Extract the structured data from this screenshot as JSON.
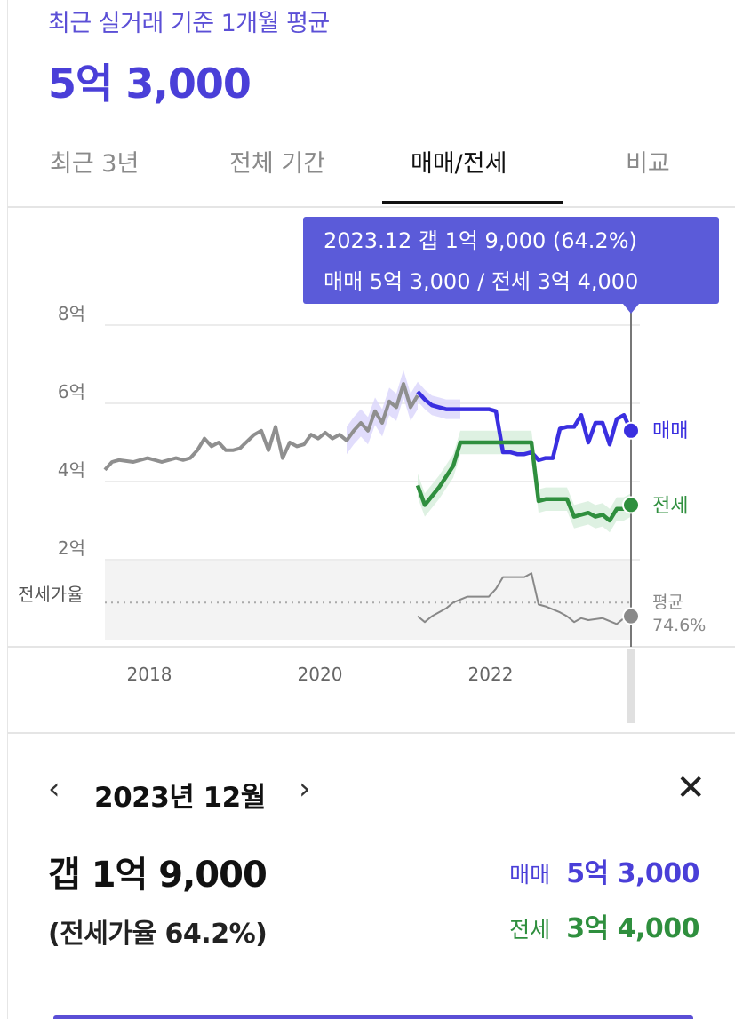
{
  "header": {
    "subtitle": "최근 실거래 기준 1개월 평균",
    "price": "5억 3,000"
  },
  "tabs": [
    {
      "label": "최근 3년",
      "active": false
    },
    {
      "label": "전체 기간",
      "active": false
    },
    {
      "label": "매매/전세",
      "active": true
    },
    {
      "label": "비교",
      "active": false
    }
  ],
  "tooltip": {
    "line1": "2023.12  갭 1억 9,000 (64.2%)",
    "line2": "매매 5억 3,000 / 전세 3억 4,000"
  },
  "colors": {
    "accent": "#4a3fd8",
    "sale": "#3a2fe0",
    "jeonse": "#2f8f3e",
    "history": "#8f8f8f",
    "ratio": "#888888",
    "tooltip_bg": "#5b5bd9"
  },
  "chart_data": {
    "type": "line",
    "x_range": [
      "2017-10",
      "2024-03"
    ],
    "xticks": [
      {
        "label": "2018",
        "x": "2018-01"
      },
      {
        "label": "2020",
        "x": "2020-01"
      },
      {
        "label": "2022",
        "x": "2022-01"
      }
    ],
    "ylim": [
      0,
      8.5
    ],
    "yticks": [
      {
        "label": "8억",
        "v": 8
      },
      {
        "label": "6억",
        "v": 6
      },
      {
        "label": "4억",
        "v": 4
      },
      {
        "label": "2억",
        "v": 2
      }
    ],
    "series": [
      {
        "key": "history",
        "points": [
          [
            "2017-10",
            4.3
          ],
          [
            "2017-11",
            4.5
          ],
          [
            "2017-12",
            4.55
          ],
          [
            "2018-02",
            4.5
          ],
          [
            "2018-04",
            4.6
          ],
          [
            "2018-06",
            4.5
          ],
          [
            "2018-08",
            4.6
          ],
          [
            "2018-09",
            4.55
          ],
          [
            "2018-10",
            4.6
          ],
          [
            "2018-11",
            4.8
          ],
          [
            "2018-12",
            5.1
          ],
          [
            "2019-01",
            4.9
          ],
          [
            "2019-02",
            5.0
          ],
          [
            "2019-03",
            4.8
          ],
          [
            "2019-04",
            4.8
          ],
          [
            "2019-05",
            4.85
          ],
          [
            "2019-07",
            5.2
          ],
          [
            "2019-08",
            5.3
          ],
          [
            "2019-09",
            4.8
          ],
          [
            "2019-10",
            5.4
          ],
          [
            "2019-11",
            4.6
          ],
          [
            "2019-12",
            5.0
          ],
          [
            "2020-01",
            4.9
          ],
          [
            "2020-02",
            4.95
          ],
          [
            "2020-03",
            5.2
          ],
          [
            "2020-04",
            5.1
          ],
          [
            "2020-05",
            5.25
          ],
          [
            "2020-06",
            5.1
          ],
          [
            "2020-07",
            5.2
          ],
          [
            "2020-08",
            5.05
          ],
          [
            "2020-09",
            5.3
          ],
          [
            "2020-10",
            5.5
          ],
          [
            "2020-11",
            5.3
          ],
          [
            "2020-12",
            5.8
          ],
          [
            "2021-01",
            5.5
          ],
          [
            "2021-02",
            6.05
          ],
          [
            "2021-03",
            5.9
          ],
          [
            "2021-04",
            6.5
          ],
          [
            "2021-05",
            5.9
          ],
          [
            "2021-06",
            6.2
          ]
        ]
      },
      {
        "key": "sale",
        "name": "매매",
        "points": [
          [
            "2021-06",
            6.3
          ],
          [
            "2021-07",
            6.1
          ],
          [
            "2021-08",
            5.95
          ],
          [
            "2021-09",
            5.9
          ],
          [
            "2021-10",
            5.85
          ],
          [
            "2021-12",
            5.85
          ],
          [
            "2022-02",
            5.85
          ],
          [
            "2022-03",
            5.85
          ],
          [
            "2022-04",
            5.85
          ],
          [
            "2022-05",
            5.8
          ],
          [
            "2022-06",
            4.75
          ],
          [
            "2022-07",
            4.75
          ],
          [
            "2022-08",
            4.7
          ],
          [
            "2022-09",
            4.7
          ],
          [
            "2022-10",
            4.75
          ],
          [
            "2022-11",
            4.55
          ],
          [
            "2022-12",
            4.6
          ],
          [
            "2023-01",
            4.6
          ],
          [
            "2023-02",
            5.35
          ],
          [
            "2023-03",
            5.4
          ],
          [
            "2023-04",
            5.4
          ],
          [
            "2023-05",
            5.7
          ],
          [
            "2023-06",
            5.0
          ],
          [
            "2023-07",
            5.5
          ],
          [
            "2023-08",
            5.5
          ],
          [
            "2023-09",
            4.95
          ],
          [
            "2023-10",
            5.6
          ],
          [
            "2023-11",
            5.7
          ],
          [
            "2023-12",
            5.3
          ]
        ]
      },
      {
        "key": "jeonse",
        "name": "전세",
        "points": [
          [
            "2021-06",
            3.9
          ],
          [
            "2021-07",
            3.4
          ],
          [
            "2021-09",
            3.85
          ],
          [
            "2021-11",
            4.4
          ],
          [
            "2021-12",
            5.0
          ],
          [
            "2022-02",
            5.0
          ],
          [
            "2022-06",
            5.0
          ],
          [
            "2022-08",
            5.0
          ],
          [
            "2022-10",
            5.0
          ],
          [
            "2022-11",
            3.5
          ],
          [
            "2022-12",
            3.55
          ],
          [
            "2023-02",
            3.55
          ],
          [
            "2023-03",
            3.55
          ],
          [
            "2023-04",
            3.1
          ],
          [
            "2023-06",
            3.2
          ],
          [
            "2023-07",
            3.1
          ],
          [
            "2023-08",
            3.15
          ],
          [
            "2023-09",
            3.0
          ],
          [
            "2023-10",
            3.3
          ],
          [
            "2023-11",
            3.3
          ],
          [
            "2023-12",
            3.4
          ]
        ]
      },
      {
        "key": "ratio",
        "points": [
          [
            "2021-06",
            0.6
          ],
          [
            "2021-07",
            0.45
          ],
          [
            "2021-08",
            0.6
          ],
          [
            "2021-10",
            0.8
          ],
          [
            "2021-11",
            0.95
          ],
          [
            "2022-01",
            1.1
          ],
          [
            "2022-04",
            1.1
          ],
          [
            "2022-05",
            1.3
          ],
          [
            "2022-06",
            1.6
          ],
          [
            "2022-07",
            1.6
          ],
          [
            "2022-09",
            1.6
          ],
          [
            "2022-10",
            1.7
          ],
          [
            "2022-11",
            0.9
          ],
          [
            "2022-12",
            0.85
          ],
          [
            "2023-02",
            0.7
          ],
          [
            "2023-03",
            0.6
          ],
          [
            "2023-04",
            0.45
          ],
          [
            "2023-05",
            0.55
          ],
          [
            "2023-06",
            0.5
          ],
          [
            "2023-08",
            0.55
          ],
          [
            "2023-10",
            0.4
          ],
          [
            "2023-11",
            0.55
          ],
          [
            "2023-12",
            0.6
          ]
        ]
      }
    ],
    "ratio_label": "전세가율",
    "ratio_avg_label": "평균",
    "ratio_avg_value": "74.6%",
    "ratio_avg_level": 0.95,
    "selected_x": "2023-12",
    "end_labels": {
      "sale": "매매",
      "jeonse": "전세"
    }
  },
  "detail": {
    "month": "2023년 12월",
    "gap": "갭 1억 9,000",
    "ratio": "(전세가율 64.2%)",
    "sale_label": "매매",
    "sale_value": "5억 3,000",
    "jeonse_label": "전세",
    "jeonse_value": "3억 4,000",
    "prev_icon": "chevron-left-icon",
    "next_icon": "chevron-right-icon",
    "close_icon": "close-icon"
  }
}
